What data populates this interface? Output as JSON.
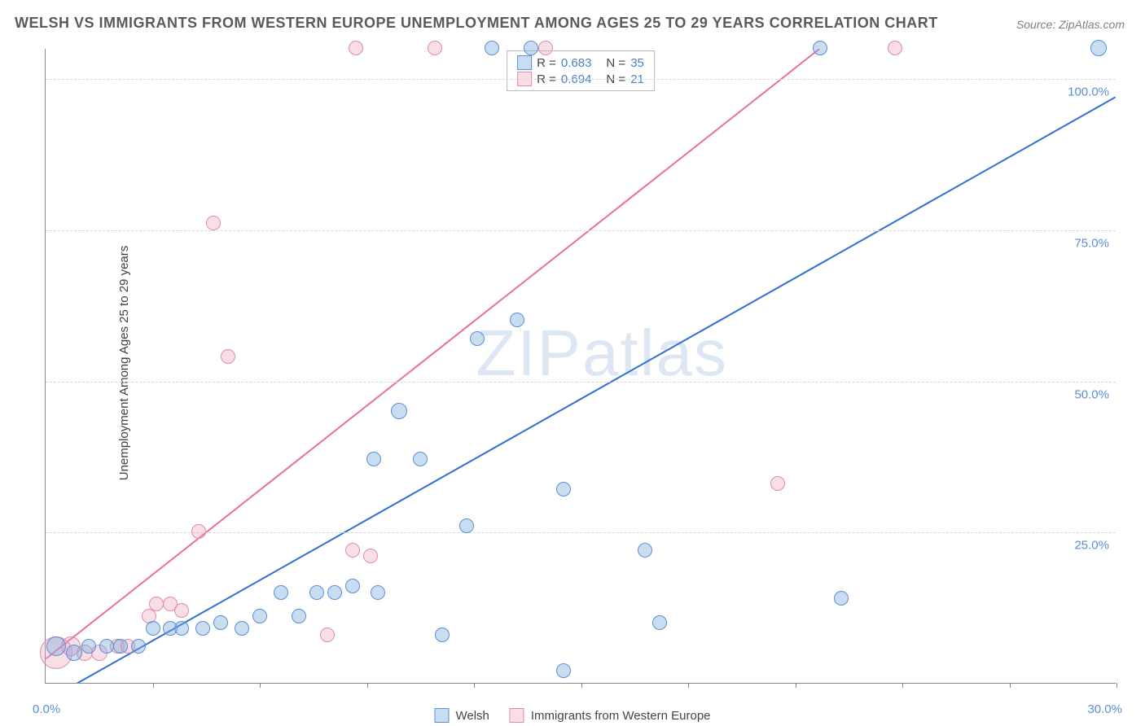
{
  "title": "WELSH VS IMMIGRANTS FROM WESTERN EUROPE UNEMPLOYMENT AMONG AGES 25 TO 29 YEARS CORRELATION CHART",
  "source": "Source: ZipAtlas.com",
  "y_axis_label": "Unemployment Among Ages 25 to 29 years",
  "watermark": "ZIPatlas",
  "x_origin_label": "0.0%",
  "x_max_label": "30.0%",
  "plot": {
    "xlim": [
      0,
      30
    ],
    "ylim": [
      0,
      105
    ],
    "y_ticks": [
      25,
      50,
      75,
      100
    ],
    "y_tick_labels": [
      "25.0%",
      "50.0%",
      "75.0%",
      "100.0%"
    ],
    "x_ticks": [
      3,
      6,
      9,
      12,
      15,
      18,
      21,
      24,
      27,
      30
    ],
    "grid_color": "#d8d8d8",
    "axis_color": "#888888",
    "background": "#ffffff"
  },
  "legend_top": {
    "rows": [
      {
        "swatch": "blue",
        "r_label": "R =",
        "r_val": "0.683",
        "n_label": "N =",
        "n_val": "35"
      },
      {
        "swatch": "pink",
        "r_label": "R =",
        "r_val": "0.694",
        "n_label": "N =",
        "n_val": "21"
      }
    ]
  },
  "legend_bottom": {
    "items": [
      {
        "swatch": "blue",
        "label": "Welsh"
      },
      {
        "swatch": "pink",
        "label": "Immigrants from Western Europe"
      }
    ]
  },
  "series": {
    "blue": {
      "color_fill": "rgba(120,170,220,0.4)",
      "color_stroke": "#5a8fd6",
      "trend": {
        "x1": 0.3,
        "y1": -2,
        "x2": 30,
        "y2": 97,
        "stroke": "#2e6fd1",
        "width": 2
      },
      "points": [
        {
          "x": 0.3,
          "y": 6,
          "r": 12
        },
        {
          "x": 0.8,
          "y": 5,
          "r": 10
        },
        {
          "x": 1.2,
          "y": 6,
          "r": 9
        },
        {
          "x": 1.7,
          "y": 6,
          "r": 9
        },
        {
          "x": 2.1,
          "y": 6,
          "r": 9
        },
        {
          "x": 2.6,
          "y": 6,
          "r": 9
        },
        {
          "x": 3.0,
          "y": 9,
          "r": 9
        },
        {
          "x": 3.5,
          "y": 9,
          "r": 9
        },
        {
          "x": 3.8,
          "y": 9,
          "r": 9
        },
        {
          "x": 4.4,
          "y": 9,
          "r": 9
        },
        {
          "x": 4.9,
          "y": 10,
          "r": 9
        },
        {
          "x": 5.5,
          "y": 9,
          "r": 9
        },
        {
          "x": 6.0,
          "y": 11,
          "r": 9
        },
        {
          "x": 6.6,
          "y": 15,
          "r": 9
        },
        {
          "x": 7.1,
          "y": 11,
          "r": 9
        },
        {
          "x": 7.6,
          "y": 15,
          "r": 9
        },
        {
          "x": 8.1,
          "y": 15,
          "r": 9
        },
        {
          "x": 8.6,
          "y": 16,
          "r": 9
        },
        {
          "x": 9.3,
          "y": 15,
          "r": 9
        },
        {
          "x": 9.2,
          "y": 37,
          "r": 9
        },
        {
          "x": 9.9,
          "y": 45,
          "r": 10
        },
        {
          "x": 10.5,
          "y": 37,
          "r": 9
        },
        {
          "x": 11.1,
          "y": 8,
          "r": 9
        },
        {
          "x": 12.1,
          "y": 57,
          "r": 9
        },
        {
          "x": 11.8,
          "y": 26,
          "r": 9
        },
        {
          "x": 12.5,
          "y": 105,
          "r": 9
        },
        {
          "x": 13.2,
          "y": 60,
          "r": 9
        },
        {
          "x": 13.6,
          "y": 105,
          "r": 9
        },
        {
          "x": 14.5,
          "y": 32,
          "r": 9
        },
        {
          "x": 14.5,
          "y": 2,
          "r": 9
        },
        {
          "x": 16.8,
          "y": 22,
          "r": 9
        },
        {
          "x": 17.2,
          "y": 10,
          "r": 9
        },
        {
          "x": 21.7,
          "y": 105,
          "r": 9
        },
        {
          "x": 22.3,
          "y": 14,
          "r": 9
        },
        {
          "x": 29.5,
          "y": 105,
          "r": 10
        }
      ]
    },
    "pink": {
      "color_fill": "rgba(235,160,185,0.35)",
      "color_stroke": "#e28aa8",
      "trend": {
        "x1": 0,
        "y1": 4,
        "x2": 21.7,
        "y2": 105,
        "stroke": "#e96f97",
        "width": 2
      },
      "points": [
        {
          "x": 0.3,
          "y": 5,
          "r": 20
        },
        {
          "x": 0.7,
          "y": 6,
          "r": 12
        },
        {
          "x": 1.1,
          "y": 5,
          "r": 10
        },
        {
          "x": 1.5,
          "y": 5,
          "r": 10
        },
        {
          "x": 2.0,
          "y": 6,
          "r": 9
        },
        {
          "x": 2.3,
          "y": 6,
          "r": 9
        },
        {
          "x": 2.9,
          "y": 11,
          "r": 9
        },
        {
          "x": 3.1,
          "y": 13,
          "r": 9
        },
        {
          "x": 3.5,
          "y": 13,
          "r": 9
        },
        {
          "x": 3.8,
          "y": 12,
          "r": 9
        },
        {
          "x": 4.3,
          "y": 25,
          "r": 9
        },
        {
          "x": 4.7,
          "y": 76,
          "r": 9
        },
        {
          "x": 5.1,
          "y": 54,
          "r": 9
        },
        {
          "x": 7.9,
          "y": 8,
          "r": 9
        },
        {
          "x": 8.6,
          "y": 22,
          "r": 9
        },
        {
          "x": 9.1,
          "y": 21,
          "r": 9
        },
        {
          "x": 8.7,
          "y": 105,
          "r": 9
        },
        {
          "x": 10.9,
          "y": 105,
          "r": 9
        },
        {
          "x": 14.0,
          "y": 105,
          "r": 9
        },
        {
          "x": 20.5,
          "y": 33,
          "r": 9
        },
        {
          "x": 23.8,
          "y": 105,
          "r": 9
        }
      ]
    }
  }
}
